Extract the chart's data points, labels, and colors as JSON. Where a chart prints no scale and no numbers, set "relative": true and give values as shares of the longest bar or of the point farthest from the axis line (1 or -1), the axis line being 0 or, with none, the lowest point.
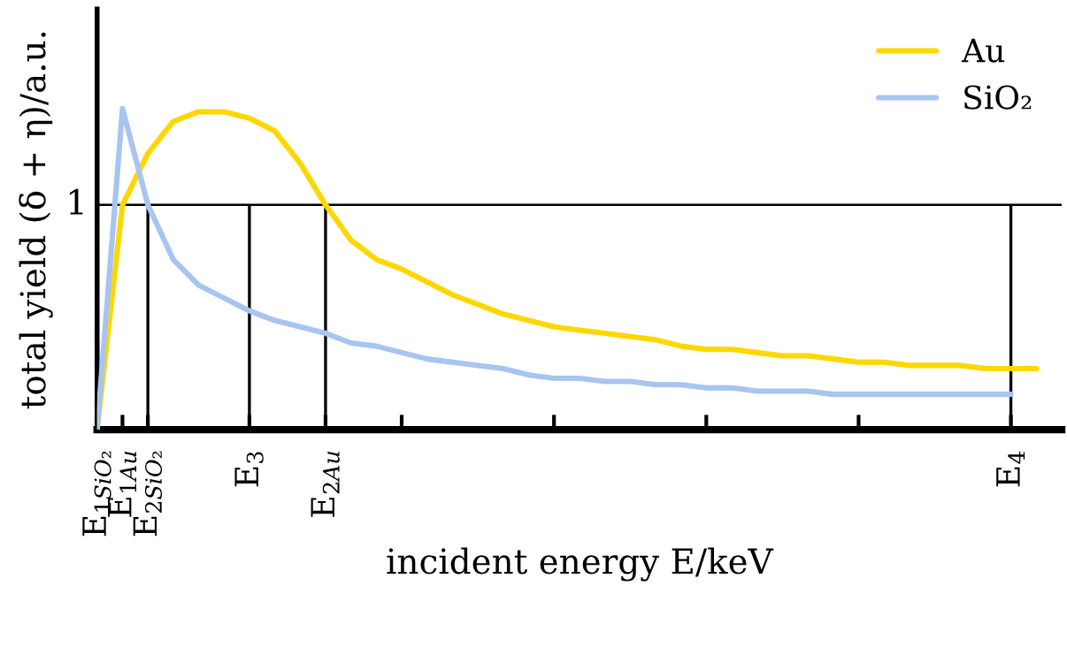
{
  "chart_data": {
    "type": "line",
    "relative": true,
    "annotations": [
      "1"
    ],
    "xlabel": "incident energy E/keV",
    "ylabel": "total yield (δ + η)/a.u.",
    "categories": [
      "E$_{1SiO₂}$",
      "E$_{1Au}$",
      "E$_{2SiO₂}$",
      null,
      null,
      null,
      "E$_{3}$",
      null,
      null,
      "E$_{2Au}$",
      null,
      null,
      null,
      null,
      null,
      null,
      null,
      null,
      null,
      null,
      null,
      null,
      null,
      null,
      null,
      null,
      null,
      null,
      null,
      null,
      null,
      null,
      null,
      null,
      null,
      null,
      "E$_{4}$",
      null,
      null
    ],
    "series": [
      {
        "name": "Au",
        "color": "#ffd700",
        "values": [
          0,
          0.7,
          0.86,
          0.96,
          0.99,
          0.99,
          0.97,
          0.93,
          0.83,
          0.7,
          0.59,
          0.53,
          0.5,
          0.46,
          0.42,
          0.39,
          0.36,
          0.34,
          0.32,
          0.31,
          0.3,
          0.29,
          0.28,
          0.26,
          0.25,
          0.25,
          0.24,
          0.23,
          0.23,
          0.22,
          0.21,
          0.21,
          0.2,
          0.2,
          0.2,
          0.19,
          0.19,
          0.19,
          null
        ]
      },
      {
        "name": "SiO₂",
        "color": "#a8c4f0",
        "values": [
          0,
          1,
          0.7,
          0.53,
          0.45,
          0.41,
          0.37,
          0.34,
          0.32,
          0.3,
          0.27,
          0.26,
          0.24,
          0.22,
          0.21,
          0.2,
          0.19,
          0.17,
          0.16,
          0.16,
          0.15,
          0.15,
          0.14,
          0.14,
          0.13,
          0.13,
          0.12,
          0.12,
          0.12,
          0.11,
          0.11,
          0.11,
          0.11,
          0.11,
          0.11,
          0.11,
          0.11,
          null,
          null
        ]
      }
    ],
    "ref_lines": [
      {
        "axis": "y",
        "value": 0.7
      },
      {
        "axis": "x",
        "value": "E$_{2SiO₂}$"
      },
      {
        "axis": "x",
        "value": "E$_{3}$"
      },
      {
        "axis": "x",
        "value": "E$_{2Au}$"
      },
      {
        "axis": "x",
        "value": "E$_{4}$"
      }
    ],
    "legend": "top right",
    "grid": false,
    "marker": "none",
    "line_style": "solid"
  }
}
